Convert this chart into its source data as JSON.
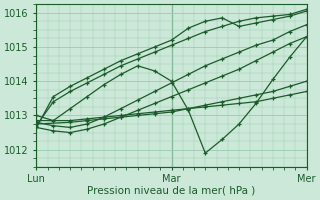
{
  "bg_color": "#cce8d8",
  "grid_color": "#99ccb0",
  "line_color": "#1a5c2a",
  "marker_color": "#1a5c2a",
  "xlabel": "Pression niveau de la mer( hPa )",
  "xlim": [
    0,
    48
  ],
  "ylim": [
    1011.5,
    1016.25
  ],
  "yticks": [
    1012,
    1013,
    1014,
    1015,
    1016
  ],
  "xtick_positions": [
    0,
    24,
    48
  ],
  "xtick_labels": [
    "Lun",
    "Mar",
    "Mer"
  ],
  "series": [
    {
      "x": [
        0,
        6,
        9,
        12,
        15,
        18,
        21,
        24,
        27,
        30,
        33,
        36,
        39,
        42,
        45,
        48
      ],
      "y": [
        1012.85,
        1012.85,
        1012.9,
        1012.95,
        1013.0,
        1013.05,
        1013.1,
        1013.15,
        1013.2,
        1013.25,
        1013.3,
        1013.35,
        1013.4,
        1013.5,
        1013.6,
        1013.7
      ]
    },
    {
      "x": [
        0,
        6,
        9,
        12,
        15,
        18,
        21,
        24,
        27,
        30,
        33,
        36,
        39,
        42,
        45,
        48
      ],
      "y": [
        1012.75,
        1012.8,
        1012.85,
        1012.9,
        1012.95,
        1013.0,
        1013.05,
        1013.1,
        1013.2,
        1013.3,
        1013.4,
        1013.5,
        1013.6,
        1013.7,
        1013.85,
        1014.0
      ]
    },
    {
      "x": [
        0,
        3,
        6,
        9,
        12,
        15,
        18,
        21,
        24,
        27,
        30,
        33,
        36,
        39,
        42,
        45,
        48
      ],
      "y": [
        1012.65,
        1012.55,
        1012.5,
        1012.6,
        1012.75,
        1012.95,
        1013.15,
        1013.35,
        1013.55,
        1013.75,
        1013.95,
        1014.15,
        1014.35,
        1014.6,
        1014.85,
        1015.1,
        1015.3
      ]
    },
    {
      "x": [
        0,
        3,
        6,
        9,
        12,
        15,
        18,
        21,
        24,
        27,
        30,
        33,
        36,
        39,
        42,
        45,
        48
      ],
      "y": [
        1012.8,
        1012.7,
        1012.65,
        1012.75,
        1012.95,
        1013.2,
        1013.45,
        1013.7,
        1013.95,
        1014.2,
        1014.45,
        1014.65,
        1014.85,
        1015.05,
        1015.2,
        1015.45,
        1015.65
      ]
    },
    {
      "x": [
        0,
        3,
        6,
        9,
        12,
        15,
        18,
        21,
        24,
        27,
        30,
        33,
        36,
        39,
        42,
        45,
        48
      ],
      "y": [
        1013.0,
        1012.85,
        1013.2,
        1013.55,
        1013.9,
        1014.2,
        1014.45,
        1014.3,
        1014.0,
        1013.15,
        1011.9,
        1012.3,
        1012.75,
        1013.35,
        1014.05,
        1014.7,
        1015.3
      ]
    },
    {
      "x": [
        0,
        3,
        6,
        9,
        12,
        15,
        18,
        21,
        24,
        27,
        30,
        33,
        36,
        39,
        42,
        45,
        48
      ],
      "y": [
        1012.7,
        1013.4,
        1013.7,
        1013.95,
        1014.2,
        1014.45,
        1014.65,
        1014.85,
        1015.05,
        1015.25,
        1015.45,
        1015.6,
        1015.75,
        1015.85,
        1015.9,
        1015.95,
        1016.1
      ]
    },
    {
      "x": [
        0,
        3,
        6,
        9,
        12,
        15,
        18,
        21,
        24,
        27,
        30,
        33,
        36,
        39,
        42,
        45,
        48
      ],
      "y": [
        1012.65,
        1013.55,
        1013.85,
        1014.1,
        1014.35,
        1014.6,
        1014.8,
        1015.0,
        1015.2,
        1015.55,
        1015.75,
        1015.85,
        1015.6,
        1015.7,
        1015.8,
        1015.9,
        1016.05
      ]
    }
  ]
}
